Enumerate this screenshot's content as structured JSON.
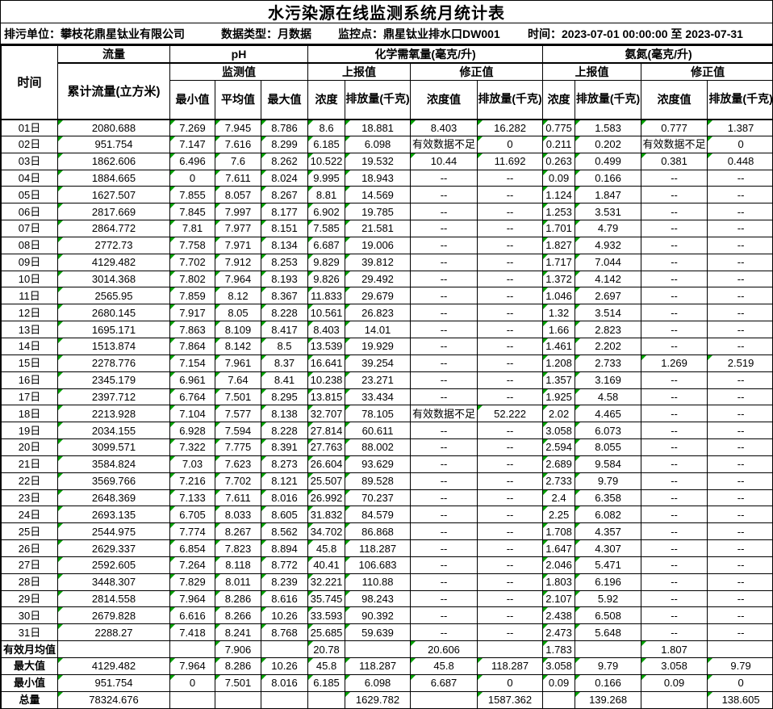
{
  "title": "水污染源在线监测系统月统计表",
  "info": {
    "unit": "排污单位：攀枝花鼎星钛业有限公司",
    "data_type": "数据类型：月数据",
    "station": "监控点：鼎星钛业排水口DW001",
    "time_range": "时间：2023-07-01 00:00:00 至 2023-07-31"
  },
  "header": {
    "time": "时间",
    "flow": "流量",
    "flow_total": "累计流量(立方米)",
    "ph": "pH",
    "monitor_value": "监测值",
    "min": "最小值",
    "avg": "平均值",
    "max": "最大值",
    "cod": "化学需氧量(毫克/升)",
    "nh3n": "氨氮(毫克/升)",
    "reported": "上报值",
    "corrected": "修正值",
    "conc": "浓度",
    "conc_value": "浓度值",
    "discharge": "排放量(千克)"
  },
  "flag_color": "#00A000",
  "no_data_text": "有效数据不足",
  "empty_value_text": "--",
  "table": {
    "rows": [
      {
        "label": "01日",
        "values": [
          "2080.688",
          "7.269",
          "7.945",
          "8.786",
          "8.6",
          "18.881",
          "8.403",
          "16.282",
          "0.775",
          "1.583",
          "0.777",
          "1.387"
        ]
      },
      {
        "label": "02日",
        "values": [
          "951.754",
          "7.147",
          "7.616",
          "8.299",
          "6.185",
          "6.098",
          "有效数据不足",
          "0",
          "0.211",
          "0.202",
          "有效数据不足",
          "0"
        ]
      },
      {
        "label": "03日",
        "values": [
          "1862.606",
          "6.496",
          "7.6",
          "8.262",
          "10.522",
          "19.532",
          "10.44",
          "11.692",
          "0.263",
          "0.499",
          "0.381",
          "0.448"
        ]
      },
      {
        "label": "04日",
        "values": [
          "1884.665",
          "0",
          "7.611",
          "8.024",
          "9.995",
          "18.943",
          "--",
          "--",
          "0.09",
          "0.166",
          "--",
          "--"
        ]
      },
      {
        "label": "05日",
        "values": [
          "1627.507",
          "7.855",
          "8.057",
          "8.267",
          "8.81",
          "14.569",
          "--",
          "--",
          "1.124",
          "1.847",
          "--",
          "--"
        ]
      },
      {
        "label": "06日",
        "values": [
          "2817.669",
          "7.845",
          "7.997",
          "8.177",
          "6.902",
          "19.785",
          "--",
          "--",
          "1.253",
          "3.531",
          "--",
          "--"
        ]
      },
      {
        "label": "07日",
        "values": [
          "2864.772",
          "7.81",
          "7.977",
          "8.151",
          "7.585",
          "21.581",
          "--",
          "--",
          "1.701",
          "4.79",
          "--",
          "--"
        ]
      },
      {
        "label": "08日",
        "values": [
          "2772.73",
          "7.758",
          "7.971",
          "8.134",
          "6.687",
          "19.006",
          "--",
          "--",
          "1.827",
          "4.932",
          "--",
          "--"
        ]
      },
      {
        "label": "09日",
        "values": [
          "4129.482",
          "7.702",
          "7.912",
          "8.253",
          "9.829",
          "39.812",
          "--",
          "--",
          "1.717",
          "7.044",
          "--",
          "--"
        ]
      },
      {
        "label": "10日",
        "values": [
          "3014.368",
          "7.802",
          "7.964",
          "8.193",
          "9.826",
          "29.492",
          "--",
          "--",
          "1.372",
          "4.142",
          "--",
          "--"
        ]
      },
      {
        "label": "11日",
        "values": [
          "2565.95",
          "7.859",
          "8.12",
          "8.367",
          "11.833",
          "29.679",
          "--",
          "--",
          "1.046",
          "2.697",
          "--",
          "--"
        ]
      },
      {
        "label": "12日",
        "values": [
          "2680.145",
          "7.917",
          "8.05",
          "8.228",
          "10.561",
          "26.823",
          "--",
          "--",
          "1.32",
          "3.514",
          "--",
          "--"
        ]
      },
      {
        "label": "13日",
        "values": [
          "1695.171",
          "7.863",
          "8.109",
          "8.417",
          "8.403",
          "14.01",
          "--",
          "--",
          "1.66",
          "2.823",
          "--",
          "--"
        ]
      },
      {
        "label": "14日",
        "values": [
          "1513.874",
          "7.864",
          "8.142",
          "8.5",
          "13.539",
          "19.929",
          "--",
          "--",
          "1.461",
          "2.202",
          "--",
          "--"
        ]
      },
      {
        "label": "15日",
        "values": [
          "2278.776",
          "7.154",
          "7.961",
          "8.37",
          "16.641",
          "39.254",
          "--",
          "--",
          "1.208",
          "2.733",
          "1.269",
          "2.519"
        ]
      },
      {
        "label": "16日",
        "values": [
          "2345.179",
          "6.961",
          "7.64",
          "8.41",
          "10.238",
          "23.271",
          "--",
          "--",
          "1.357",
          "3.169",
          "--",
          "--"
        ]
      },
      {
        "label": "17日",
        "values": [
          "2397.712",
          "6.764",
          "7.501",
          "8.295",
          "13.815",
          "33.434",
          "--",
          "--",
          "1.925",
          "4.58",
          "--",
          "--"
        ]
      },
      {
        "label": "18日",
        "values": [
          "2213.928",
          "7.104",
          "7.577",
          "8.138",
          "32.707",
          "78.105",
          "有效数据不足",
          "52.222",
          "2.02",
          "4.465",
          "--",
          "--"
        ]
      },
      {
        "label": "19日",
        "values": [
          "2034.155",
          "6.928",
          "7.594",
          "8.228",
          "27.814",
          "60.611",
          "--",
          "--",
          "3.058",
          "6.073",
          "--",
          "--"
        ]
      },
      {
        "label": "20日",
        "values": [
          "3099.571",
          "7.322",
          "7.775",
          "8.391",
          "27.763",
          "88.002",
          "--",
          "--",
          "2.594",
          "8.055",
          "--",
          "--"
        ]
      },
      {
        "label": "21日",
        "values": [
          "3584.824",
          "7.03",
          "7.623",
          "8.273",
          "26.604",
          "93.629",
          "--",
          "--",
          "2.689",
          "9.584",
          "--",
          "--"
        ]
      },
      {
        "label": "22日",
        "values": [
          "3569.766",
          "7.216",
          "7.702",
          "8.121",
          "25.507",
          "89.528",
          "--",
          "--",
          "2.733",
          "9.79",
          "--",
          "--"
        ]
      },
      {
        "label": "23日",
        "values": [
          "2648.369",
          "7.133",
          "7.611",
          "8.016",
          "26.992",
          "70.237",
          "--",
          "--",
          "2.4",
          "6.358",
          "--",
          "--"
        ]
      },
      {
        "label": "24日",
        "values": [
          "2693.135",
          "6.705",
          "8.033",
          "8.605",
          "31.832",
          "84.579",
          "--",
          "--",
          "2.25",
          "6.082",
          "--",
          "--"
        ]
      },
      {
        "label": "25日",
        "values": [
          "2544.975",
          "7.774",
          "8.267",
          "8.562",
          "34.702",
          "86.868",
          "--",
          "--",
          "1.708",
          "4.357",
          "--",
          "--"
        ]
      },
      {
        "label": "26日",
        "values": [
          "2629.337",
          "6.854",
          "7.823",
          "8.894",
          "45.8",
          "118.287",
          "--",
          "--",
          "1.647",
          "4.307",
          "--",
          "--"
        ]
      },
      {
        "label": "27日",
        "values": [
          "2592.605",
          "7.264",
          "8.118",
          "8.772",
          "40.41",
          "106.683",
          "--",
          "--",
          "2.046",
          "5.471",
          "--",
          "--"
        ]
      },
      {
        "label": "28日",
        "values": [
          "3448.307",
          "7.829",
          "8.011",
          "8.239",
          "32.221",
          "110.88",
          "--",
          "--",
          "1.803",
          "6.196",
          "--",
          "--"
        ]
      },
      {
        "label": "29日",
        "values": [
          "2814.558",
          "7.964",
          "8.286",
          "8.616",
          "35.745",
          "98.243",
          "--",
          "--",
          "2.107",
          "5.92",
          "--",
          "--"
        ]
      },
      {
        "label": "30日",
        "values": [
          "2679.828",
          "6.616",
          "8.266",
          "10.26",
          "33.593",
          "90.392",
          "--",
          "--",
          "2.438",
          "6.508",
          "--",
          "--"
        ]
      },
      {
        "label": "31日",
        "values": [
          "2288.27",
          "7.418",
          "8.241",
          "8.768",
          "25.685",
          "59.639",
          "--",
          "--",
          "2.473",
          "5.648",
          "--",
          "--"
        ]
      },
      {
        "label": "有效月均值",
        "values": [
          "",
          "",
          "7.906",
          "",
          "20.78",
          "",
          "20.606",
          "",
          "1.783",
          "",
          "1.807",
          ""
        ]
      },
      {
        "label": "最大值",
        "values": [
          "4129.482",
          "7.964",
          "8.286",
          "10.26",
          "45.8",
          "118.287",
          "45.8",
          "118.287",
          "3.058",
          "9.79",
          "3.058",
          "9.79"
        ]
      },
      {
        "label": "最小值",
        "values": [
          "951.754",
          "0",
          "7.501",
          "8.016",
          "6.185",
          "6.098",
          "6.687",
          "0",
          "0.09",
          "0.166",
          "0.09",
          "0"
        ]
      },
      {
        "label": "总量",
        "values": [
          "78324.676",
          "",
          "",
          "",
          "",
          "1629.782",
          "",
          "1587.362",
          "",
          "139.268",
          "",
          "138.605"
        ]
      }
    ]
  }
}
